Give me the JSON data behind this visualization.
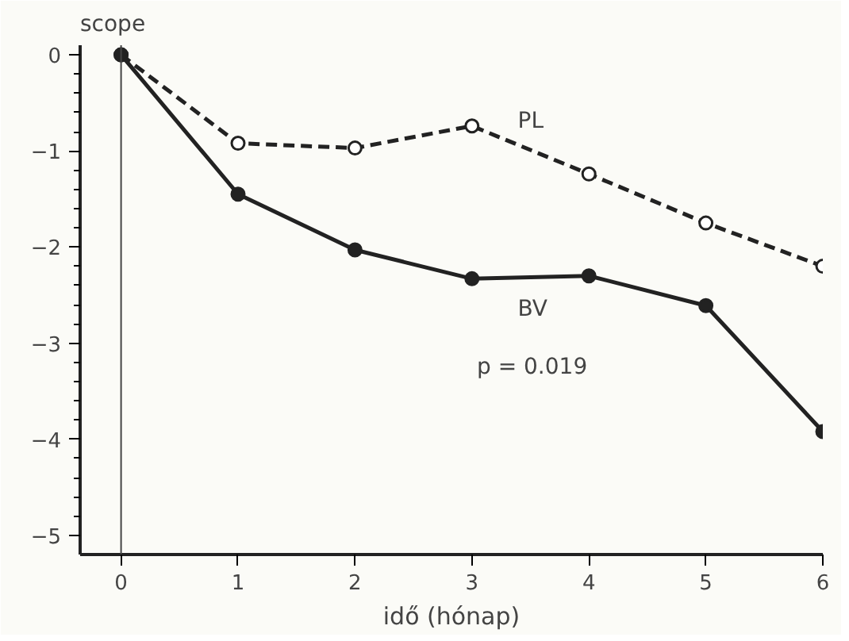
{
  "chart_data": {
    "type": "line",
    "xlabel": "idő (hónap)",
    "ylabel": "scope",
    "x": [
      0,
      1,
      2,
      3,
      4,
      5,
      6
    ],
    "series": [
      {
        "name": "PL",
        "color": "#222222",
        "values": [
          0,
          -0.92,
          -0.97,
          -0.74,
          -1.24,
          -1.75,
          -2.2
        ],
        "line_style": "dashed",
        "marker": "circle"
      },
      {
        "name": "BV",
        "color": "#222222",
        "values": [
          0,
          -1.45,
          -2.03,
          -2.33,
          -2.3,
          -2.61,
          -3.92
        ],
        "line_style": "solid",
        "marker": "circle"
      }
    ],
    "xlim": [
      -0.35,
      6
    ],
    "ylim": [
      -5.2,
      0.1
    ],
    "xticks": [
      0,
      1,
      2,
      3,
      4,
      5,
      6
    ],
    "yticks": [
      0,
      -1,
      -2,
      -3,
      -4,
      -5
    ],
    "ref_lines": [
      {
        "axis": "x",
        "value": 0,
        "label": null,
        "color": "#444444"
      }
    ],
    "annotations": [
      "p = 0.019"
    ],
    "grid": false
  }
}
